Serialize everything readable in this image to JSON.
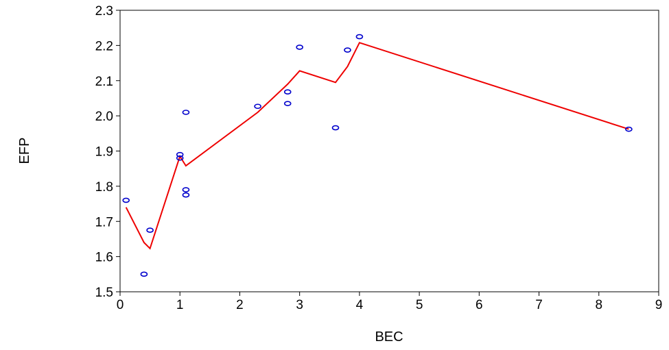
{
  "chart_data": {
    "type": "scatter",
    "title": "",
    "xlabel": "BEC",
    "ylabel": "EFP",
    "xlim": [
      0,
      9
    ],
    "ylim": [
      1.5,
      2.3
    ],
    "xticks": [
      "0",
      "1",
      "2",
      "3",
      "4",
      "5",
      "6",
      "7",
      "8",
      "9"
    ],
    "yticks": [
      "1.5",
      "1.6",
      "1.7",
      "1.8",
      "1.9",
      "2.0",
      "2.1",
      "2.2",
      "2.3"
    ],
    "grid": false,
    "legend": "none",
    "series": [
      {
        "kind": "scatter",
        "color": "#0000cc",
        "marker": "open-circle",
        "points": [
          [
            0.1,
            1.76
          ],
          [
            0.4,
            1.55
          ],
          [
            0.5,
            1.675
          ],
          [
            1.0,
            1.89
          ],
          [
            1.0,
            1.88
          ],
          [
            1.1,
            2.01
          ],
          [
            1.1,
            1.79
          ],
          [
            1.1,
            1.775
          ],
          [
            2.3,
            2.027
          ],
          [
            2.8,
            2.068
          ],
          [
            2.8,
            2.035
          ],
          [
            3.0,
            2.195
          ],
          [
            3.6,
            1.966
          ],
          [
            3.8,
            2.187
          ],
          [
            4.0,
            2.225
          ],
          [
            8.5,
            1.962
          ]
        ]
      },
      {
        "kind": "line",
        "color": "#ee0000",
        "points": [
          [
            0.1,
            1.74
          ],
          [
            0.4,
            1.64
          ],
          [
            0.5,
            1.623
          ],
          [
            1.0,
            1.885
          ],
          [
            1.1,
            1.858
          ],
          [
            2.3,
            2.01
          ],
          [
            2.8,
            2.09
          ],
          [
            3.0,
            2.128
          ],
          [
            3.6,
            2.095
          ],
          [
            3.8,
            2.14
          ],
          [
            4.0,
            2.208
          ],
          [
            8.5,
            1.962
          ]
        ]
      }
    ]
  }
}
